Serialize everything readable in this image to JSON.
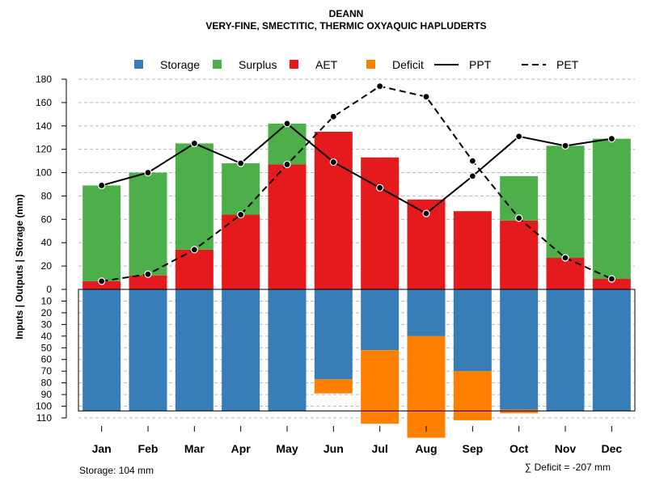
{
  "chart_data": {
    "type": "bar",
    "title": "DEANN",
    "subtitle": "VERY-FINE, SMECTITIC, THERMIC OXYAQUIC HAPLUDERTS",
    "ylabel": "Inputs | Outputs | Storage    (mm)",
    "categories": [
      "Jan",
      "Feb",
      "Mar",
      "Apr",
      "May",
      "Jun",
      "Jul",
      "Aug",
      "Sep",
      "Oct",
      "Nov",
      "Dec"
    ],
    "ylim_top": [
      0,
      180
    ],
    "ylim_bottom": [
      0,
      110
    ],
    "yticks_top": [
      "0",
      "20",
      "40",
      "60",
      "80",
      "100",
      "120",
      "140",
      "160",
      "180"
    ],
    "yticks_bottom": [
      "10",
      "20",
      "30",
      "40",
      "50",
      "60",
      "70",
      "80",
      "90",
      "100",
      "110"
    ],
    "legend": [
      {
        "name": "Storage",
        "color": "#377EB8",
        "kind": "box"
      },
      {
        "name": "Surplus",
        "color": "#4DAF4A",
        "kind": "box"
      },
      {
        "name": "AET",
        "color": "#E41A1C",
        "kind": "box"
      },
      {
        "name": "Deficit",
        "color": "#FF7F00",
        "kind": "box"
      },
      {
        "name": "PPT",
        "color": "#000000",
        "kind": "solid"
      },
      {
        "name": "PET",
        "color": "#000000",
        "kind": "dashed"
      }
    ],
    "series": [
      {
        "name": "AET",
        "values": [
          7,
          12,
          34,
          64,
          107,
          135,
          113,
          77,
          67,
          59,
          27,
          9
        ]
      },
      {
        "name": "Surplus",
        "values": [
          82,
          88,
          91,
          44,
          35,
          0,
          0,
          0,
          0,
          38,
          96,
          120
        ]
      },
      {
        "name": "Storage",
        "values": [
          104,
          104,
          104,
          104,
          104,
          77,
          52,
          40,
          70,
          103,
          104,
          104
        ]
      },
      {
        "name": "Deficit",
        "values": [
          0,
          0,
          0,
          0,
          0,
          12,
          63,
          87,
          42,
          3,
          0,
          0
        ]
      },
      {
        "name": "PPT",
        "values": [
          89,
          100,
          125,
          108,
          142,
          109,
          87,
          65,
          97,
          131,
          123,
          129
        ]
      },
      {
        "name": "PET",
        "values": [
          7,
          13,
          34,
          64,
          107,
          148,
          174,
          165,
          110,
          61,
          27,
          9
        ]
      }
    ],
    "storage_capacity": 104,
    "footer_left": "Storage: 104 mm",
    "footer_right": "∑ Deficit = -207 mm"
  },
  "colors": {
    "storage": "#377EB8",
    "surplus": "#4DAF4A",
    "aet": "#E41A1C",
    "deficit": "#FF7F00",
    "grid": "#BBBBBB"
  }
}
